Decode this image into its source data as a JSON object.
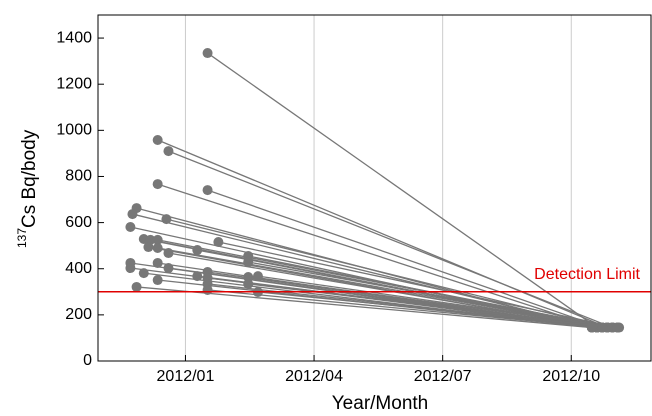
{
  "chart_data": {
    "type": "segments",
    "ylabel_sup": "137",
    "ylabel": "Cs Bq/body",
    "xlabel": "Year/Month",
    "color": "#777777",
    "grid": true,
    "xlim": [
      2011.83,
      2012.905
    ],
    "ylim": [
      0,
      1500
    ],
    "xticks": [
      {
        "value": 2012.0,
        "label": "2012/01"
      },
      {
        "value": 2012.25,
        "label": "2012/04"
      },
      {
        "value": 2012.5,
        "label": "2012/07"
      },
      {
        "value": 2012.75,
        "label": "2012/10"
      }
    ],
    "yticks": [
      0,
      200,
      400,
      600,
      800,
      1000,
      1200,
      1400
    ],
    "detection_limit": {
      "value": 300,
      "label": "Detection Limit",
      "color": "#e00000"
    },
    "segments": [
      {
        "x": [
          2012.043,
          2012.8
        ],
        "y": [
          1335,
          145
        ]
      },
      {
        "x": [
          2011.946,
          2012.82
        ],
        "y": [
          958,
          145
        ]
      },
      {
        "x": [
          2011.967,
          2012.83
        ],
        "y": [
          910,
          145
        ]
      },
      {
        "x": [
          2011.946,
          2012.8
        ],
        "y": [
          767,
          145
        ]
      },
      {
        "x": [
          2012.043,
          2012.81
        ],
        "y": [
          741,
          145
        ]
      },
      {
        "x": [
          2011.905,
          2012.79
        ],
        "y": [
          663,
          145
        ]
      },
      {
        "x": [
          2011.897,
          2012.8
        ],
        "y": [
          637,
          145
        ]
      },
      {
        "x": [
          2011.963,
          2012.82
        ],
        "y": [
          615,
          145
        ]
      },
      {
        "x": [
          2011.893,
          2012.79
        ],
        "y": [
          581,
          145
        ]
      },
      {
        "x": [
          2011.919,
          2012.8
        ],
        "y": [
          529,
          145
        ]
      },
      {
        "x": [
          2011.932,
          2012.81
        ],
        "y": [
          525,
          145
        ]
      },
      {
        "x": [
          2011.946,
          2012.83
        ],
        "y": [
          525,
          145
        ]
      },
      {
        "x": [
          2011.928,
          2012.8
        ],
        "y": [
          494,
          145
        ]
      },
      {
        "x": [
          2011.946,
          2012.82
        ],
        "y": [
          490,
          145
        ]
      },
      {
        "x": [
          2012.064,
          2012.84
        ],
        "y": [
          516,
          145
        ]
      },
      {
        "x": [
          2011.967,
          2012.81
        ],
        "y": [
          468,
          145
        ]
      },
      {
        "x": [
          2012.023,
          2012.82
        ],
        "y": [
          481,
          145
        ]
      },
      {
        "x": [
          2012.122,
          2012.83
        ],
        "y": [
          455,
          145
        ]
      },
      {
        "x": [
          2012.122,
          2012.84
        ],
        "y": [
          429,
          145
        ]
      },
      {
        "x": [
          2011.893,
          2012.79
        ],
        "y": [
          425,
          145
        ]
      },
      {
        "x": [
          2011.946,
          2012.8
        ],
        "y": [
          425,
          145
        ]
      },
      {
        "x": [
          2011.893,
          2012.8
        ],
        "y": [
          403,
          145
        ]
      },
      {
        "x": [
          2011.967,
          2012.81
        ],
        "y": [
          403,
          145
        ]
      },
      {
        "x": [
          2011.919,
          2012.79
        ],
        "y": [
          381,
          145
        ]
      },
      {
        "x": [
          2012.043,
          2012.82
        ],
        "y": [
          386,
          145
        ]
      },
      {
        "x": [
          2012.043,
          2012.83
        ],
        "y": [
          360,
          145
        ]
      },
      {
        "x": [
          2012.023,
          2012.81
        ],
        "y": [
          368,
          145
        ]
      },
      {
        "x": [
          2012.122,
          2012.84
        ],
        "y": [
          364,
          145
        ]
      },
      {
        "x": [
          2012.141,
          2012.843
        ],
        "y": [
          368,
          145
        ]
      },
      {
        "x": [
          2011.946,
          2012.8
        ],
        "y": [
          351,
          145
        ]
      },
      {
        "x": [
          2011.905,
          2012.79
        ],
        "y": [
          321,
          145
        ]
      },
      {
        "x": [
          2012.043,
          2012.82
        ],
        "y": [
          334,
          145
        ]
      },
      {
        "x": [
          2012.122,
          2012.83
        ],
        "y": [
          334,
          145
        ]
      },
      {
        "x": [
          2012.043,
          2012.81
        ],
        "y": [
          308,
          145
        ]
      },
      {
        "x": [
          2012.141,
          2012.84
        ],
        "y": [
          299,
          145
        ]
      }
    ]
  }
}
